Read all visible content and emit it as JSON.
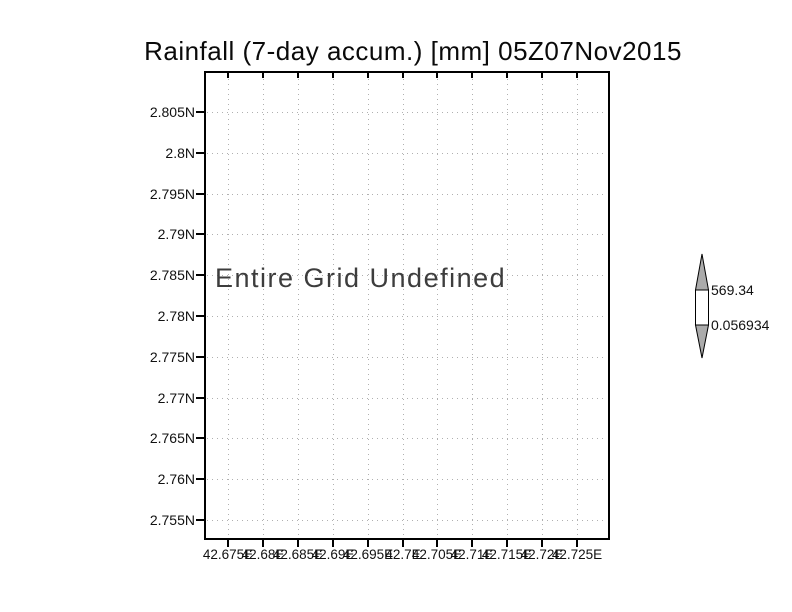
{
  "title": "Rainfall (7-day accum.) [mm] 05Z07Nov2015",
  "plot": {
    "undefined_message": "Entire Grid Undefined",
    "y_axis_labels": [
      "2.805N",
      "2.8N",
      "2.795N",
      "2.79N",
      "2.785N",
      "2.78N",
      "2.775N",
      "2.77N",
      "2.765N",
      "2.76N",
      "2.755N"
    ],
    "x_axis_labels": [
      "42.675E",
      "42.68E",
      "42.685E",
      "42.69E",
      "42.695E",
      "42.7E",
      "42.705E",
      "42.71E",
      "42.715E",
      "42.72E",
      "42.725E"
    ]
  },
  "colorbar": {
    "max_label": "569.34",
    "min_label": "0.056934",
    "arrow_fill": "#ababab"
  },
  "colors": {
    "frame": "#000000",
    "grid": "#b0b0b0",
    "message_text": "#3d3d3d"
  },
  "chart_data": {
    "type": "heatmap",
    "title": "Rainfall (7-day accum.) [mm] 05Z07Nov2015",
    "x_tick_labels": [
      "42.675E",
      "42.68E",
      "42.685E",
      "42.69E",
      "42.695E",
      "42.7E",
      "42.705E",
      "42.71E",
      "42.715E",
      "42.72E",
      "42.725E"
    ],
    "y_tick_labels": [
      "2.805N",
      "2.8N",
      "2.795N",
      "2.79N",
      "2.785N",
      "2.78N",
      "2.775N",
      "2.77N",
      "2.765N",
      "2.76N",
      "2.755N"
    ],
    "x_range": [
      42.675,
      42.725
    ],
    "y_range": [
      2.755,
      2.805
    ],
    "x_unit": "degrees east longitude",
    "y_unit": "degrees north latitude",
    "grid": "dotted gray, on",
    "legend_position": "right vertical colorbar with arrow end caps",
    "colorbar_min": 0.056934,
    "colorbar_max": 569.34,
    "values": [],
    "annotation": "Entire Grid Undefined"
  }
}
